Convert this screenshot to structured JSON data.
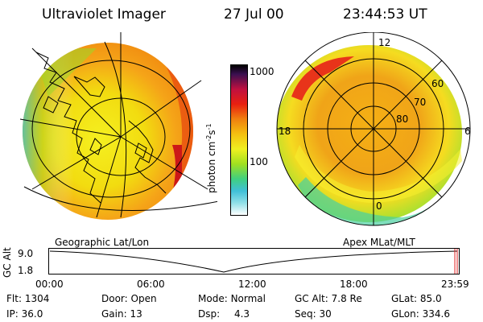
{
  "header": {
    "instrument": "Ultraviolet Imager",
    "date": "27 Jul 00",
    "time": "23:44:53 UT"
  },
  "colorbar": {
    "ticks": [
      "1000",
      "100"
    ],
    "label": "photon cm",
    "label_exp1": "-2",
    "label_s": "s",
    "label_exp2": "-1"
  },
  "geographic_panel": {
    "label": "Geographic Lat/Lon"
  },
  "polar_panel": {
    "label": "Apex MLat/MLT",
    "mlt_labels": [
      "12",
      "18",
      "6",
      "0"
    ],
    "mlat_labels": [
      "60",
      "70",
      "80"
    ]
  },
  "altitude_plot": {
    "ylabel": "GC Alt",
    "ymax": "9.0",
    "ymin": "1.8",
    "x_ticks": [
      "00:00",
      "06:00",
      "12:00",
      "18:00",
      "23:59"
    ]
  },
  "status": {
    "flt_label": "Flt:",
    "flt_value": "1304",
    "ip_label": "IP:",
    "ip_value": "36.0",
    "door_label": "Door:",
    "door_value": "Open",
    "gain_label": "Gain:",
    "gain_value": "13",
    "mode_label": "Mode:",
    "mode_value": "Normal",
    "dsp_label": "Dsp:",
    "dsp_value": "4.3",
    "gcalt_label": "GC Alt:",
    "gcalt_value": "7.8 Re",
    "seq_label": "Seq:",
    "seq_value": "30",
    "glat_label": "GLat:",
    "glat_value": "85.0",
    "glon_label": "GLon:",
    "glon_value": "334.6"
  }
}
